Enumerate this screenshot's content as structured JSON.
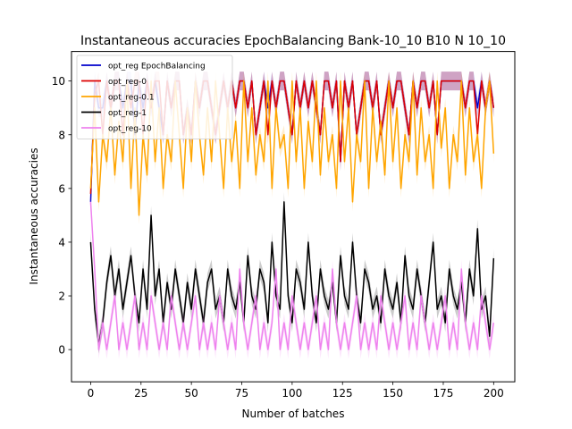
{
  "chart_data": {
    "type": "line",
    "title": "Instantaneous accuracies EpochBalancing Bank-10_10 B10 N 10_10",
    "xlabel": "Number of batches",
    "ylabel": "Instantaneous accuracies",
    "xlim": [
      -9.5,
      210.5
    ],
    "ylim": [
      -1.2,
      11.1
    ],
    "xticks": [
      0,
      25,
      50,
      75,
      100,
      125,
      150,
      175,
      200
    ],
    "yticks": [
      0,
      2,
      4,
      6,
      8,
      10
    ],
    "legend_position": "top-left",
    "series": [
      {
        "name": "opt_reg EpochBalancing",
        "color": "#0000cc",
        "x": [
          0,
          2,
          4,
          6,
          8,
          10,
          12,
          14,
          16,
          18,
          20,
          22,
          24,
          26,
          28,
          30,
          32,
          34,
          36,
          38,
          40,
          42,
          44,
          46,
          48,
          50,
          52,
          54,
          56,
          58,
          60,
          62,
          64,
          66,
          68,
          70,
          72,
          74,
          76,
          78,
          80,
          82,
          84,
          86,
          88,
          90,
          92,
          94,
          96,
          98,
          100,
          102,
          104,
          106,
          108,
          110,
          112,
          114,
          116,
          118,
          120,
          122,
          124,
          126,
          128,
          130,
          132,
          134,
          136,
          138,
          140,
          142,
          144,
          146,
          148,
          150,
          152,
          154,
          156,
          158,
          160,
          162,
          164,
          166,
          168,
          170,
          172,
          174,
          176,
          178,
          180,
          182,
          184,
          186,
          188,
          190,
          192,
          194,
          196,
          198,
          200
        ],
        "values": [
          5.5,
          10,
          9,
          9,
          10,
          9,
          10,
          10,
          9,
          10,
          10,
          8,
          10,
          9,
          10,
          9,
          10,
          9,
          8,
          10,
          9,
          10,
          10,
          8,
          9,
          8,
          10,
          9,
          10,
          10,
          9,
          8,
          9,
          10,
          9,
          10,
          9,
          10,
          10,
          9,
          10,
          8,
          9,
          10,
          9,
          10,
          9,
          10,
          10,
          9,
          8,
          10,
          9,
          10,
          9,
          10,
          9,
          8,
          10,
          10,
          9,
          10,
          7,
          10,
          9,
          10,
          8,
          9,
          10,
          10,
          9,
          10,
          8,
          9,
          10,
          9,
          10,
          10,
          9,
          8,
          10,
          9,
          10,
          10,
          9,
          10,
          8,
          10,
          10,
          10,
          10,
          10,
          10,
          9,
          10,
          10,
          9,
          10,
          9,
          10,
          9
        ]
      },
      {
        "name": "opt_reg-0",
        "color": "#dd0000",
        "x": [
          0,
          2,
          4,
          6,
          8,
          10,
          12,
          14,
          16,
          18,
          20,
          22,
          24,
          26,
          28,
          30,
          32,
          34,
          36,
          38,
          40,
          42,
          44,
          46,
          48,
          50,
          52,
          54,
          56,
          58,
          60,
          62,
          64,
          66,
          68,
          70,
          72,
          74,
          76,
          78,
          80,
          82,
          84,
          86,
          88,
          90,
          92,
          94,
          96,
          98,
          100,
          102,
          104,
          106,
          108,
          110,
          112,
          114,
          116,
          118,
          120,
          122,
          124,
          126,
          128,
          130,
          132,
          134,
          136,
          138,
          140,
          142,
          144,
          146,
          148,
          150,
          152,
          154,
          156,
          158,
          160,
          162,
          164,
          166,
          168,
          170,
          172,
          174,
          176,
          178,
          180,
          182,
          184,
          186,
          188,
          190,
          192,
          194,
          196,
          198,
          200
        ],
        "values": [
          5.8,
          9.5,
          10,
          8,
          10,
          9,
          10,
          10,
          8,
          10,
          9,
          10,
          10,
          8,
          10,
          9,
          10,
          10,
          8,
          10,
          9,
          10,
          10,
          8,
          9,
          8,
          10,
          9,
          10,
          10,
          9,
          8,
          9,
          10,
          9,
          10,
          9,
          10,
          10,
          9,
          10,
          8,
          9,
          10,
          8,
          10,
          9,
          10,
          10,
          9,
          8,
          10,
          9,
          10,
          9,
          10,
          9,
          8,
          10,
          10,
          9,
          10,
          7,
          10,
          9,
          10,
          8,
          9,
          10,
          10,
          9,
          10,
          8,
          9,
          10,
          9,
          10,
          10,
          9,
          8,
          10,
          9,
          10,
          10,
          9,
          10,
          8,
          10,
          10,
          10,
          10,
          10,
          10,
          9,
          10,
          10,
          8,
          10,
          9,
          10,
          9
        ]
      },
      {
        "name": "opt_reg-0.1",
        "color": "#ffa500",
        "x": [
          0,
          2,
          4,
          6,
          8,
          10,
          12,
          14,
          16,
          18,
          20,
          22,
          24,
          26,
          28,
          30,
          32,
          34,
          36,
          38,
          40,
          42,
          44,
          46,
          48,
          50,
          52,
          54,
          56,
          58,
          60,
          62,
          64,
          66,
          68,
          70,
          72,
          74,
          76,
          78,
          80,
          82,
          84,
          86,
          88,
          90,
          92,
          94,
          96,
          98,
          100,
          102,
          104,
          106,
          108,
          110,
          112,
          114,
          116,
          118,
          120,
          122,
          124,
          126,
          128,
          130,
          132,
          134,
          136,
          138,
          140,
          142,
          144,
          146,
          148,
          150,
          152,
          154,
          156,
          158,
          160,
          162,
          164,
          166,
          168,
          170,
          172,
          174,
          176,
          178,
          180,
          182,
          184,
          186,
          188,
          190,
          192,
          194,
          196,
          198,
          200
        ],
        "values": [
          6.0,
          9,
          5.5,
          8,
          7,
          9,
          6.5,
          8.5,
          7,
          10,
          6,
          9,
          5,
          8,
          6.5,
          10,
          7,
          9,
          6,
          8,
          7,
          10,
          8,
          6,
          9,
          7,
          10,
          8,
          6.5,
          9,
          7,
          10,
          8,
          6,
          9,
          7,
          8.5,
          6,
          10,
          7,
          9,
          6.5,
          8,
          7,
          10,
          6,
          9,
          7.5,
          8,
          6,
          10,
          7,
          9,
          6,
          8.5,
          7,
          10,
          6.5,
          9,
          7,
          8,
          6,
          10,
          7,
          9,
          5.5,
          8,
          7,
          10,
          6,
          9,
          7,
          8.5,
          6.5,
          10,
          7,
          9,
          6,
          8,
          7,
          10,
          6.5,
          9,
          7,
          8,
          6,
          10,
          7.5,
          9,
          6,
          8,
          7,
          10,
          6.5,
          9,
          7,
          8,
          6,
          9,
          10,
          7.3
        ]
      },
      {
        "name": "opt_reg-1",
        "color": "#000000",
        "x": [
          0,
          2,
          4,
          6,
          8,
          10,
          12,
          14,
          16,
          18,
          20,
          22,
          24,
          26,
          28,
          30,
          32,
          34,
          36,
          38,
          40,
          42,
          44,
          46,
          48,
          50,
          52,
          54,
          56,
          58,
          60,
          62,
          64,
          66,
          68,
          70,
          72,
          74,
          76,
          78,
          80,
          82,
          84,
          86,
          88,
          90,
          92,
          94,
          96,
          98,
          100,
          102,
          104,
          106,
          108,
          110,
          112,
          114,
          116,
          118,
          120,
          122,
          124,
          126,
          128,
          130,
          132,
          134,
          136,
          138,
          140,
          142,
          144,
          146,
          148,
          150,
          152,
          154,
          156,
          158,
          160,
          162,
          164,
          166,
          168,
          170,
          172,
          174,
          176,
          178,
          180,
          182,
          184,
          186,
          188,
          190,
          192,
          194,
          196,
          198,
          200
        ],
        "values": [
          4.0,
          1.5,
          0.2,
          1,
          2.5,
          3.5,
          2,
          3,
          1.5,
          2.5,
          3.5,
          2,
          1,
          3,
          1.5,
          5,
          2,
          3,
          1,
          2.5,
          1.5,
          3,
          2,
          1,
          2.5,
          1.5,
          3,
          2,
          1,
          2.5,
          3,
          1.5,
          2,
          1,
          3,
          2,
          1.5,
          2.5,
          1,
          3.5,
          2,
          1.5,
          3,
          2.5,
          1,
          4,
          2,
          1.5,
          5.5,
          2,
          1,
          3,
          2.5,
          1.5,
          4,
          2,
          1,
          3,
          2,
          1.5,
          2.5,
          1,
          3.5,
          2,
          1.5,
          4,
          2,
          1,
          3,
          2.5,
          1.5,
          2,
          1,
          3,
          2,
          1.5,
          2.5,
          1,
          3.5,
          2,
          1.5,
          3,
          2,
          1,
          2.5,
          4,
          1.5,
          2,
          1,
          3,
          2,
          1.5,
          2.5,
          1,
          3,
          2,
          4.5,
          1.5,
          2,
          0.5,
          3.4
        ]
      },
      {
        "name": "opt_reg-10",
        "color": "#ee82ee",
        "x": [
          0,
          2,
          4,
          6,
          8,
          10,
          12,
          14,
          16,
          18,
          20,
          22,
          24,
          26,
          28,
          30,
          32,
          34,
          36,
          38,
          40,
          42,
          44,
          46,
          48,
          50,
          52,
          54,
          56,
          58,
          60,
          62,
          64,
          66,
          68,
          70,
          72,
          74,
          76,
          78,
          80,
          82,
          84,
          86,
          88,
          90,
          92,
          94,
          96,
          98,
          100,
          102,
          104,
          106,
          108,
          110,
          112,
          114,
          116,
          118,
          120,
          122,
          124,
          126,
          128,
          130,
          132,
          134,
          136,
          138,
          140,
          142,
          144,
          146,
          148,
          150,
          152,
          154,
          156,
          158,
          160,
          162,
          164,
          166,
          168,
          170,
          172,
          174,
          176,
          178,
          180,
          182,
          184,
          186,
          188,
          190,
          192,
          194,
          196,
          198,
          200
        ],
        "values": [
          5.5,
          3,
          0,
          1,
          0,
          1,
          2,
          0,
          1,
          0,
          1,
          2,
          0,
          1,
          0,
          2,
          1,
          0,
          1,
          0,
          2,
          1,
          0,
          1,
          0,
          1,
          2,
          0,
          1,
          0,
          1,
          0,
          2,
          1,
          0,
          1,
          0,
          3,
          1,
          0,
          1,
          2,
          0,
          1,
          0,
          1,
          3,
          0,
          1,
          0,
          2,
          1,
          0,
          1,
          0,
          1,
          2,
          0,
          1,
          0,
          3,
          1,
          0,
          1,
          0,
          1,
          2,
          0,
          1,
          0,
          1,
          0,
          2,
          1,
          0,
          1,
          0,
          1,
          2,
          0,
          1,
          0,
          2,
          1,
          0,
          1,
          0,
          1,
          2,
          0,
          1,
          0,
          3,
          1,
          0,
          1,
          0,
          2,
          1,
          0,
          1
        ]
      }
    ]
  }
}
